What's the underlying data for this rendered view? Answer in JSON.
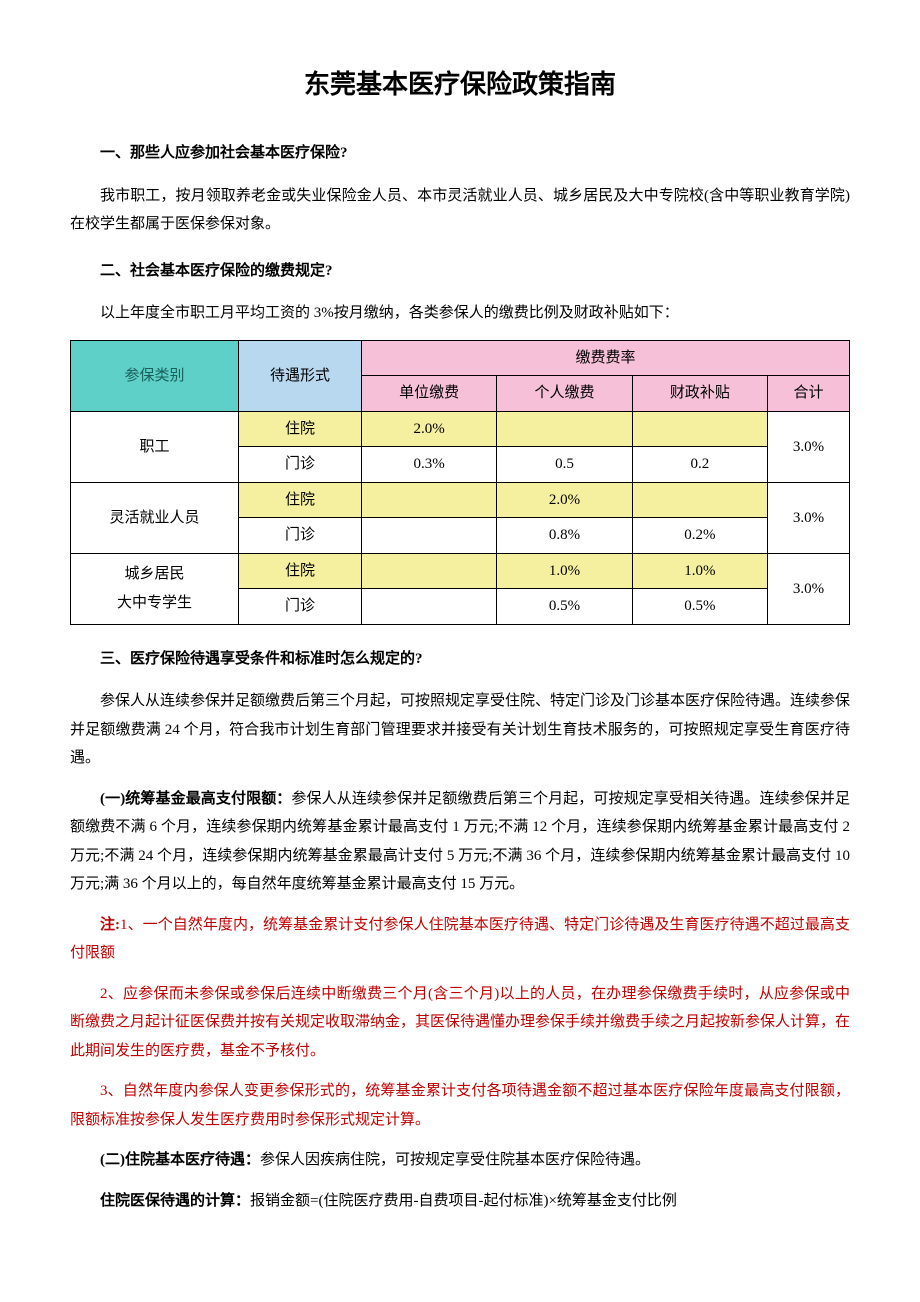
{
  "title": "东莞基本医疗保险政策指南",
  "sections": {
    "s1": {
      "heading": "一、那些人应参加社会基本医疗保险?",
      "body": "我市职工，按月领取养老金或失业保险金人员、本市灵活就业人员、城乡居民及大中专院校(含中等职业教育学院)在校学生都属于医保参保对象。"
    },
    "s2": {
      "heading": "二、社会基本医疗保险的缴费规定?",
      "body": "以上年度全市职工月平均工资的 3%按月缴纳，各类参保人的缴费比例及财政补贴如下："
    },
    "s3": {
      "heading": "三、医疗保险待遇享受条件和标准时怎么规定的?",
      "body": "参保人从连续参保并足额缴费后第三个月起，可按照规定享受住院、特定门诊及门诊基本医疗保险待遇。连续参保并足额缴费满 24 个月，符合我市计划生育部门管理要求并接受有关计划生育技术服务的，可按照规定享受生育医疗待遇。",
      "sub1_label": "(一)统筹基金最高支付限额：",
      "sub1_body": "参保人从连续参保并足额缴费后第三个月起，可按规定享受相关待遇。连续参保并足额缴费不满 6 个月，连续参保期内统筹基金累计最高支付 1 万元;不满 12 个月，连续参保期内统筹基金累计最高支付 2 万元;不满 24 个月，连续参保期内统筹基金累最高计支付 5 万元;不满 36 个月，连续参保期内统筹基金累计最高支付 10 万元;满 36 个月以上的，每自然年度统筹基金累计最高支付 15 万元。",
      "note_label": "注:",
      "note1": "1、一个自然年度内，统筹基金累计支付参保人住院基本医疗待遇、特定门诊待遇及生育医疗待遇不超过最高支付限额",
      "note2": "2、应参保而未参保或参保后连续中断缴费三个月(含三个月)以上的人员，在办理参保缴费手续时，从应参保或中断缴费之月起计征医保费并按有关规定收取滞纳金，其医保待遇懂办理参保手续并缴费手续之月起按新参保人计算，在此期间发生的医疗费，基金不予核付。",
      "note3": "3、自然年度内参保人变更参保形式的，统筹基金累计支付各项待遇金额不超过基本医疗保险年度最高支付限额，限额标准按参保人发生医疗费用时参保形式规定计算。",
      "sub2_label": "(二)住院基本医疗待遇：",
      "sub2_body": "参保人因疾病住院，可按规定享受住院基本医疗保险待遇。",
      "calc_label": "住院医保待遇的计算：",
      "calc_body": "报销金额=(住院医疗费用-自费项目-起付标准)×统筹基金支付比例"
    }
  },
  "table": {
    "headers": {
      "category": "参保类别",
      "form": "待遇形式",
      "rate_group": "缴费费率",
      "unit": "单位缴费",
      "personal": "个人缴费",
      "subsidy": "财政补贴",
      "total": "合计"
    },
    "colors": {
      "teal": "#5fd0c8",
      "blue": "#b8d8f0",
      "pink": "#f5c0d8",
      "yellow": "#f5f0a0"
    },
    "rows": [
      {
        "category": "职工",
        "r1": {
          "form": "住院",
          "unit": "2.0%",
          "personal": "",
          "subsidy": "",
          "highlight": true
        },
        "r2": {
          "form": "门诊",
          "unit": "0.3%",
          "personal": "0.5",
          "subsidy": "0.2",
          "highlight": false
        },
        "total": "3.0%"
      },
      {
        "category": "灵活就业人员",
        "r1": {
          "form": "住院",
          "unit": "",
          "personal": "2.0%",
          "subsidy": "",
          "highlight": true
        },
        "r2": {
          "form": "门诊",
          "unit": "",
          "personal": "0.8%",
          "subsidy": "0.2%",
          "highlight": false
        },
        "total": "3.0%"
      },
      {
        "category": "城乡居民\n大中专学生",
        "r1": {
          "form": "住院",
          "unit": "",
          "personal": "1.0%",
          "subsidy": "1.0%",
          "highlight": true
        },
        "r2": {
          "form": "门诊",
          "unit": "",
          "personal": "0.5%",
          "subsidy": "0.5%",
          "highlight": false
        },
        "total": "3.0%"
      }
    ]
  }
}
